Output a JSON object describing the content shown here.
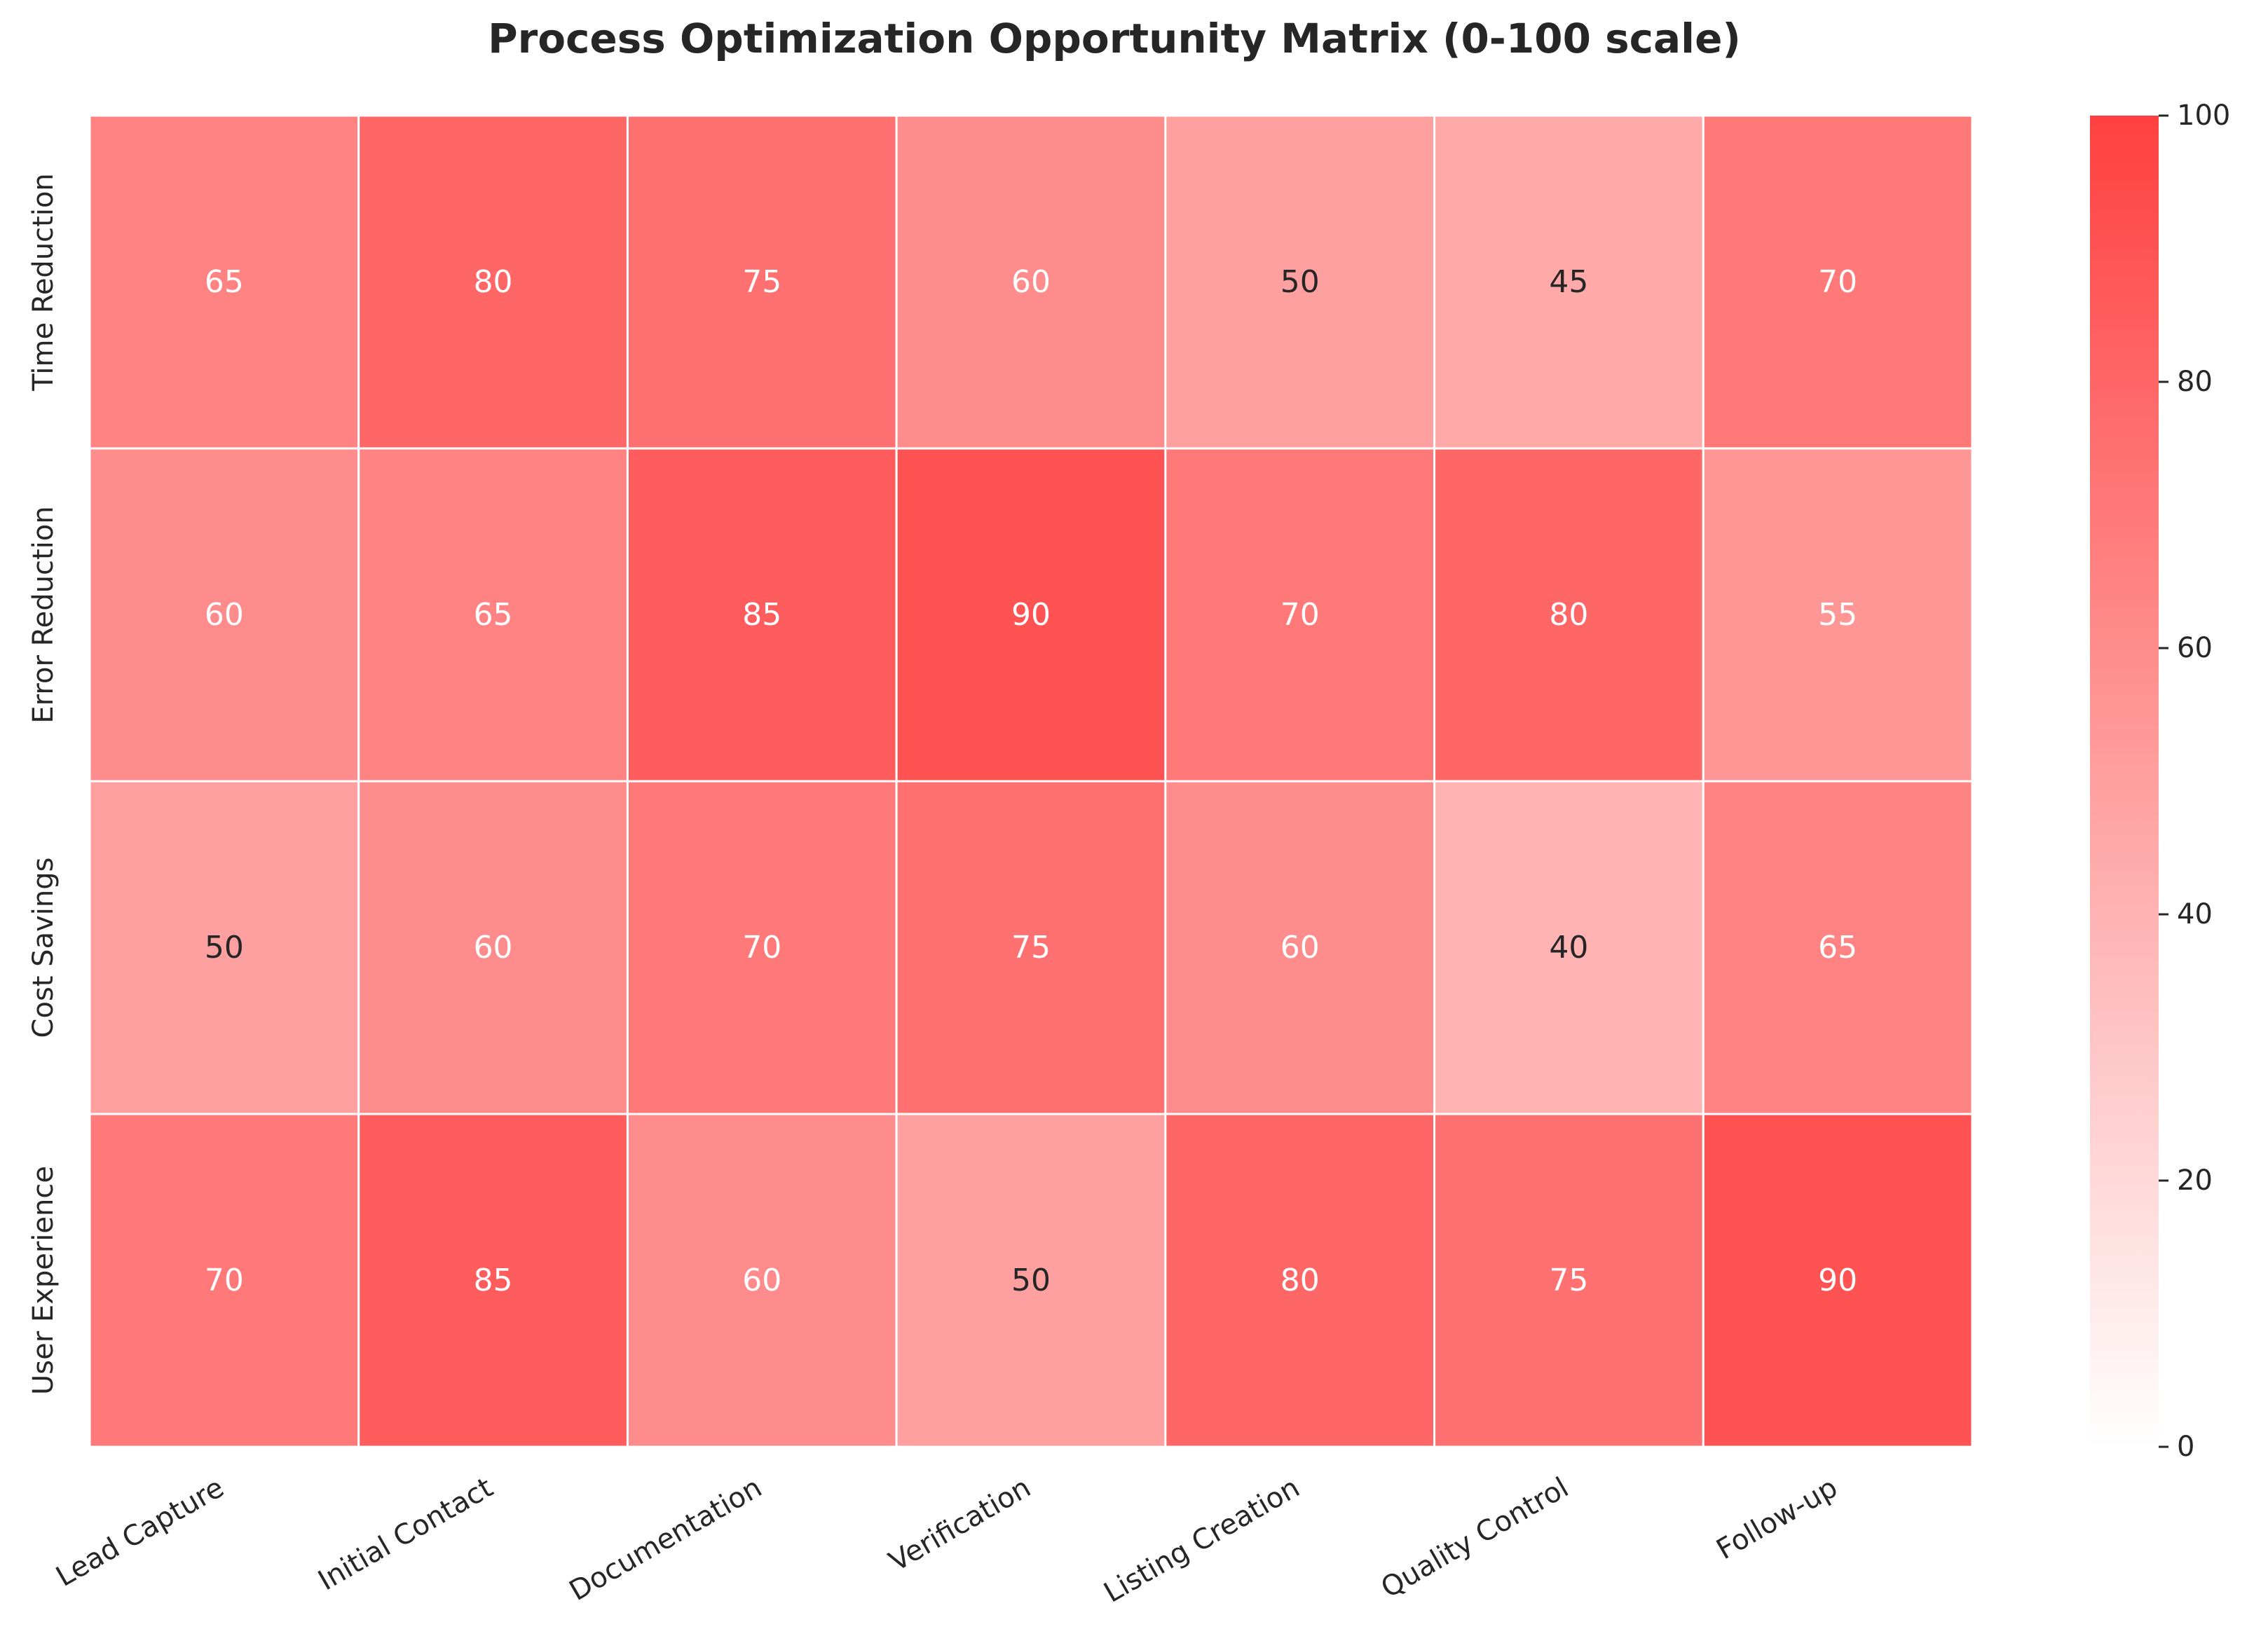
{
  "chart_data": {
    "type": "heatmap",
    "title": "Process Optimization Opportunity Matrix (0-100 scale)",
    "columns": [
      "Lead Capture",
      "Initial Contact",
      "Documentation",
      "Verification",
      "Listing Creation",
      "Quality Control",
      "Follow-up"
    ],
    "rows": [
      "Time Reduction",
      "Error Reduction",
      "Cost Savings",
      "User Experience"
    ],
    "values": [
      [
        65,
        80,
        75,
        60,
        50,
        45,
        70
      ],
      [
        60,
        65,
        85,
        90,
        70,
        80,
        55
      ],
      [
        50,
        60,
        70,
        75,
        60,
        40,
        65
      ],
      [
        70,
        85,
        60,
        50,
        80,
        75,
        90
      ]
    ],
    "value_range": [
      0,
      100
    ],
    "colorbar_ticks": [
      "0",
      "20",
      "40",
      "60",
      "80",
      "100"
    ],
    "colormap": {
      "low": "#ffffff",
      "high": "#ff4040"
    },
    "text_colors": {
      "dark": "#262626",
      "light": "#ffffff"
    },
    "grid_line_color": "#ffffff"
  }
}
